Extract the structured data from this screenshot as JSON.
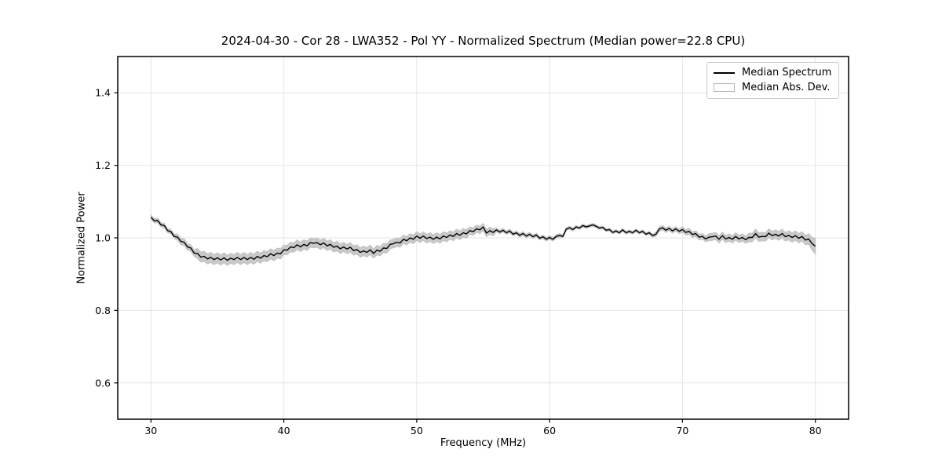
{
  "figure": {
    "background": "#ffffff"
  },
  "chart_data": {
    "type": "line",
    "title": "2024-04-30 - Cor 28 - LWA352 - Pol YY - Normalized Spectrum (Median power=22.8 CPU)",
    "xlabel": "Frequency (MHz)",
    "ylabel": "Normalized Power",
    "xlim": [
      27.5,
      82.5
    ],
    "ylim": [
      0.5,
      1.5
    ],
    "xticks": [
      30,
      40,
      50,
      60,
      70,
      80
    ],
    "yticks": [
      0.6,
      0.8,
      1.0,
      1.2,
      1.4
    ],
    "grid": true,
    "legend": {
      "position": "upper right",
      "entries": [
        {
          "label": "Median Spectrum",
          "type": "line",
          "color": "#000000"
        },
        {
          "label": "Median Abs. Dev.",
          "type": "patch",
          "color": "#c9c9c9"
        }
      ]
    },
    "colors": {
      "median_line": "#000000",
      "mad_band": "#c9c9c9",
      "band_edge": "#bdbdbd",
      "grid": "#e5e5e5",
      "frame": "#000000"
    },
    "x": [
      30,
      30.25,
      30.5,
      30.75,
      31,
      31.25,
      31.5,
      31.75,
      32,
      32.25,
      32.5,
      32.75,
      33,
      33.25,
      33.5,
      33.75,
      34,
      34.25,
      34.5,
      34.75,
      35,
      35.25,
      35.5,
      35.75,
      36,
      36.25,
      36.5,
      36.75,
      37,
      37.25,
      37.5,
      37.75,
      38,
      38.25,
      38.5,
      38.75,
      39,
      39.25,
      39.5,
      39.75,
      40,
      40.25,
      40.5,
      40.75,
      41,
      41.25,
      41.5,
      41.75,
      42,
      42.25,
      42.5,
      42.75,
      43,
      43.25,
      43.5,
      43.75,
      44,
      44.25,
      44.5,
      44.75,
      45,
      45.25,
      45.5,
      45.75,
      46,
      46.25,
      46.5,
      46.75,
      47,
      47.25,
      47.5,
      47.75,
      48,
      48.25,
      48.5,
      48.75,
      49,
      49.25,
      49.5,
      49.75,
      50,
      50.25,
      50.5,
      50.75,
      51,
      51.25,
      51.5,
      51.75,
      52,
      52.25,
      52.5,
      52.75,
      53,
      53.25,
      53.5,
      53.75,
      54,
      54.25,
      54.5,
      54.75,
      55,
      55.25,
      55.5,
      55.75,
      56,
      56.25,
      56.5,
      56.75,
      57,
      57.25,
      57.5,
      57.75,
      58,
      58.25,
      58.5,
      58.75,
      59,
      59.25,
      59.5,
      59.75,
      60,
      60.25,
      60.5,
      60.75,
      61,
      61.25,
      61.5,
      61.75,
      62,
      62.25,
      62.5,
      62.75,
      63,
      63.25,
      63.5,
      63.75,
      64,
      64.25,
      64.5,
      64.75,
      65,
      65.25,
      65.5,
      65.75,
      66,
      66.25,
      66.5,
      66.75,
      67,
      67.25,
      67.5,
      67.75,
      68,
      68.25,
      68.5,
      68.75,
      69,
      69.25,
      69.5,
      69.75,
      70,
      70.25,
      70.5,
      70.75,
      71,
      71.25,
      71.5,
      71.75,
      72,
      72.25,
      72.5,
      72.75,
      73,
      73.25,
      73.5,
      73.75,
      74,
      74.25,
      74.5,
      74.75,
      75,
      75.25,
      75.5,
      75.75,
      76,
      76.25,
      76.5,
      76.75,
      77,
      77.25,
      77.5,
      77.75,
      78,
      78.25,
      78.5,
      78.75,
      79,
      79.25,
      79.5,
      79.75,
      80
    ],
    "median": [
      1.057,
      1.047,
      1.048,
      1.036,
      1.034,
      1.02,
      1.017,
      1.004,
      1.002,
      0.99,
      0.988,
      0.975,
      0.972,
      0.958,
      0.957,
      0.947,
      0.949,
      0.942,
      0.946,
      0.94,
      0.945,
      0.939,
      0.945,
      0.938,
      0.944,
      0.94,
      0.946,
      0.94,
      0.946,
      0.94,
      0.946,
      0.941,
      0.949,
      0.944,
      0.951,
      0.948,
      0.956,
      0.951,
      0.958,
      0.956,
      0.967,
      0.966,
      0.975,
      0.973,
      0.981,
      0.975,
      0.982,
      0.978,
      0.987,
      0.985,
      0.987,
      0.981,
      0.986,
      0.978,
      0.982,
      0.974,
      0.977,
      0.97,
      0.975,
      0.969,
      0.974,
      0.965,
      0.968,
      0.96,
      0.964,
      0.96,
      0.967,
      0.957,
      0.966,
      0.963,
      0.972,
      0.971,
      0.982,
      0.984,
      0.988,
      0.986,
      0.996,
      0.992,
      1.0,
      0.996,
      1.005,
      0.999,
      1.005,
      0.998,
      1.002,
      0.996,
      1.002,
      0.997,
      1.005,
      1.001,
      1.008,
      1.004,
      1.012,
      1.007,
      1.014,
      1.011,
      1.02,
      1.017,
      1.025,
      1.022,
      1.03,
      1.013,
      1.02,
      1.015,
      1.022,
      1.016,
      1.021,
      1.014,
      1.019,
      1.01,
      1.014,
      1.007,
      1.012,
      1.005,
      1.01,
      1.003,
      1.008,
      0.999,
      1.003,
      0.996,
      1.001,
      0.996,
      1.004,
      1.007,
      1.004,
      1.024,
      1.028,
      1.023,
      1.03,
      1.027,
      1.034,
      1.03,
      1.033,
      1.036,
      1.032,
      1.027,
      1.029,
      1.021,
      1.023,
      1.015,
      1.019,
      1.014,
      1.022,
      1.014,
      1.018,
      1.014,
      1.021,
      1.014,
      1.018,
      1.01,
      1.014,
      1.006,
      1.01,
      1.024,
      1.028,
      1.021,
      1.026,
      1.019,
      1.025,
      1.018,
      1.023,
      1.015,
      1.018,
      1.009,
      1.012,
      1.002,
      1.004,
      0.997,
      1.002,
      1.003,
      1.005,
      0.996,
      1.006,
      0.997,
      1.001,
      0.996,
      1.004,
      0.997,
      1.001,
      0.995,
      1.001,
      1.001,
      1.012,
      1.002,
      1.004,
      1.003,
      1.013,
      1.006,
      1.01,
      1.005,
      1.012,
      1.003,
      1.007,
      1.001,
      1.006,
      0.999,
      1.004,
      0.994,
      0.997,
      0.984,
      0.977
    ],
    "mad": [
      0.006,
      0.006,
      0.006,
      0.006,
      0.006,
      0.006,
      0.006,
      0.006,
      0.009,
      0.009,
      0.009,
      0.009,
      0.009,
      0.009,
      0.014,
      0.014,
      0.014,
      0.014,
      0.014,
      0.014,
      0.014,
      0.014,
      0.014,
      0.014,
      0.014,
      0.014,
      0.014,
      0.014,
      0.014,
      0.014,
      0.014,
      0.014,
      0.014,
      0.014,
      0.014,
      0.014,
      0.014,
      0.014,
      0.014,
      0.014,
      0.013,
      0.013,
      0.013,
      0.013,
      0.013,
      0.013,
      0.013,
      0.013,
      0.013,
      0.013,
      0.013,
      0.013,
      0.013,
      0.013,
      0.013,
      0.013,
      0.013,
      0.013,
      0.013,
      0.013,
      0.013,
      0.013,
      0.013,
      0.013,
      0.013,
      0.013,
      0.013,
      0.013,
      0.013,
      0.013,
      0.013,
      0.013,
      0.012,
      0.012,
      0.012,
      0.012,
      0.012,
      0.012,
      0.012,
      0.012,
      0.012,
      0.012,
      0.012,
      0.012,
      0.012,
      0.012,
      0.012,
      0.012,
      0.012,
      0.012,
      0.012,
      0.012,
      0.012,
      0.012,
      0.012,
      0.012,
      0.01,
      0.01,
      0.01,
      0.01,
      0.01,
      0.01,
      0.01,
      0.01,
      0.005,
      0.005,
      0.005,
      0.005,
      0.005,
      0.005,
      0.005,
      0.005,
      0.005,
      0.005,
      0.005,
      0.005,
      0.005,
      0.005,
      0.005,
      0.005,
      0.005,
      0.005,
      0.005,
      0.005,
      0.004,
      0.004,
      0.004,
      0.004,
      0.004,
      0.004,
      0.004,
      0.004,
      0.004,
      0.004,
      0.004,
      0.004,
      0.004,
      0.004,
      0.004,
      0.004,
      0.004,
      0.004,
      0.004,
      0.004,
      0.004,
      0.004,
      0.004,
      0.004,
      0.004,
      0.004,
      0.004,
      0.004,
      0.006,
      0.006,
      0.006,
      0.006,
      0.006,
      0.006,
      0.006,
      0.006,
      0.008,
      0.008,
      0.008,
      0.008,
      0.008,
      0.008,
      0.008,
      0.008,
      0.01,
      0.01,
      0.01,
      0.01,
      0.01,
      0.01,
      0.01,
      0.01,
      0.01,
      0.01,
      0.01,
      0.01,
      0.012,
      0.012,
      0.012,
      0.012,
      0.012,
      0.012,
      0.012,
      0.012,
      0.012,
      0.012,
      0.012,
      0.012,
      0.013,
      0.013,
      0.013,
      0.013,
      0.013,
      0.013,
      0.015,
      0.018,
      0.022
    ]
  }
}
